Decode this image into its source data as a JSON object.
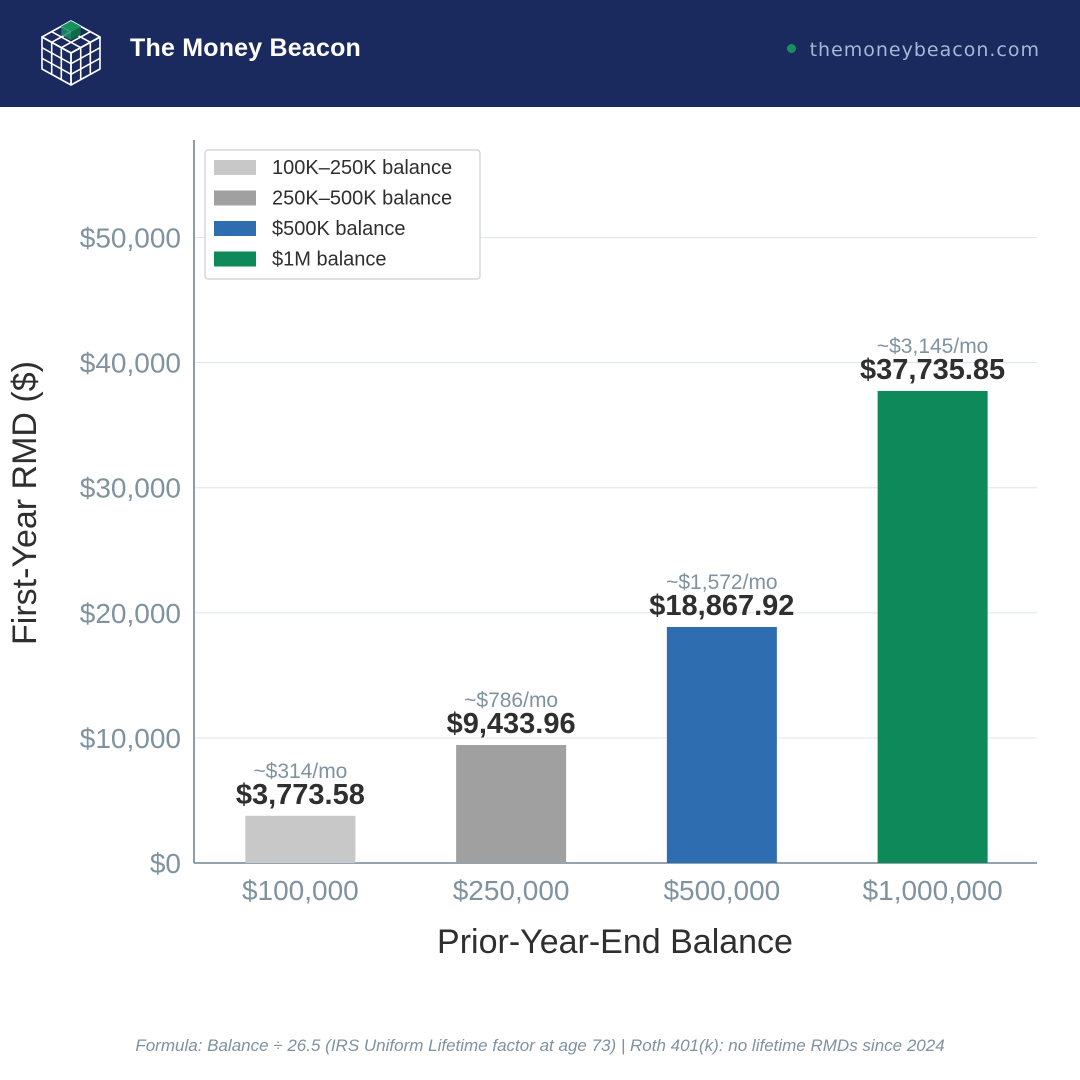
{
  "header": {
    "brand": "The Money Beacon",
    "site": "themoneybeacon.com",
    "logo_icon": "isometric-cube-icon",
    "bg_color": "#1b2a5e",
    "accent_color": "#179060"
  },
  "chart_data": {
    "type": "bar",
    "categories": [
      "$100,000",
      "$250,000",
      "$500,000",
      "$1,000,000"
    ],
    "values": [
      3773.58,
      9433.96,
      18867.92,
      37735.85
    ],
    "value_labels": [
      "$3,773.58",
      "$9,433.96",
      "$18,867.92",
      "$37,735.85"
    ],
    "monthly_labels": [
      "~$314/mo",
      "~$786/mo",
      "~$1,572/mo",
      "~$3,145/mo"
    ],
    "colors": [
      "#c8c8c8",
      "#a0a0a0",
      "#2e6db0",
      "#0e8a5a"
    ],
    "xlabel": "Prior-Year-End Balance",
    "ylabel": "First-Year RMD ($)",
    "ylim": [
      0,
      57800
    ],
    "yticks": [
      0,
      10000,
      20000,
      30000,
      40000,
      50000
    ],
    "ytick_labels": [
      "$0",
      "$10,000",
      "$20,000",
      "$30,000",
      "$40,000",
      "$50,000"
    ],
    "grid": true,
    "legend_position": "top-left",
    "legend": [
      {
        "label": "100K–250K balance",
        "color": "#c8c8c8"
      },
      {
        "label": "250K–500K balance",
        "color": "#a0a0a0"
      },
      {
        "label": "$500K balance",
        "color": "#2e6db0"
      },
      {
        "label": "$1M balance",
        "color": "#0e8a5a"
      }
    ]
  },
  "footer": {
    "note": "Formula: Balance ÷ 26.5 (IRS Uniform Lifetime factor at age 73)  |  Roth 401(k): no lifetime RMDs since 2024"
  }
}
